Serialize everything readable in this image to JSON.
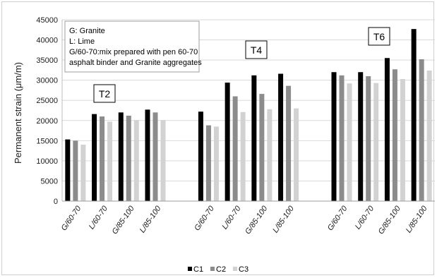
{
  "chart_data": {
    "type": "bar",
    "ylabel": "Permanent strain (μm/m)",
    "ylim": [
      0,
      45000
    ],
    "ytick_step": 5000,
    "grid": "horizontal",
    "legend_position": "bottom",
    "series": [
      {
        "name": "C1",
        "color": "#000000"
      },
      {
        "name": "C2",
        "color": "#8c8c8c"
      },
      {
        "name": "C3",
        "color": "#d2d2d2"
      }
    ],
    "groups": [
      {
        "label": "T2",
        "categories": [
          "G/60-70",
          "L/60-70",
          "G/85-100",
          "L/85-100"
        ],
        "values": [
          [
            15300,
            15000,
            14000
          ],
          [
            21600,
            21000,
            19700
          ],
          [
            22000,
            21200,
            20100
          ],
          [
            22700,
            22000,
            20100
          ]
        ]
      },
      {
        "label": "T4",
        "categories": [
          "G/60-70",
          "L/60-70",
          "G/85-100",
          "L/85-100"
        ],
        "values": [
          [
            22200,
            18800,
            18500
          ],
          [
            29400,
            26000,
            22100
          ],
          [
            31200,
            26600,
            22800
          ],
          [
            31600,
            28600,
            23000
          ]
        ]
      },
      {
        "label": "T6",
        "categories": [
          "G/60-70",
          "L/60-70",
          "G/85-100",
          "L/85-100"
        ],
        "values": [
          [
            32000,
            31200,
            29200
          ],
          [
            32000,
            31000,
            29300
          ],
          [
            35500,
            32700,
            30300
          ],
          [
            42700,
            35200,
            32400
          ]
        ]
      }
    ],
    "annotation": [
      "G: Granite",
      "L: Lime",
      "G/60-70:mix prepared with pen 60-70",
      "asphalt binder and Granite aggregates"
    ]
  }
}
